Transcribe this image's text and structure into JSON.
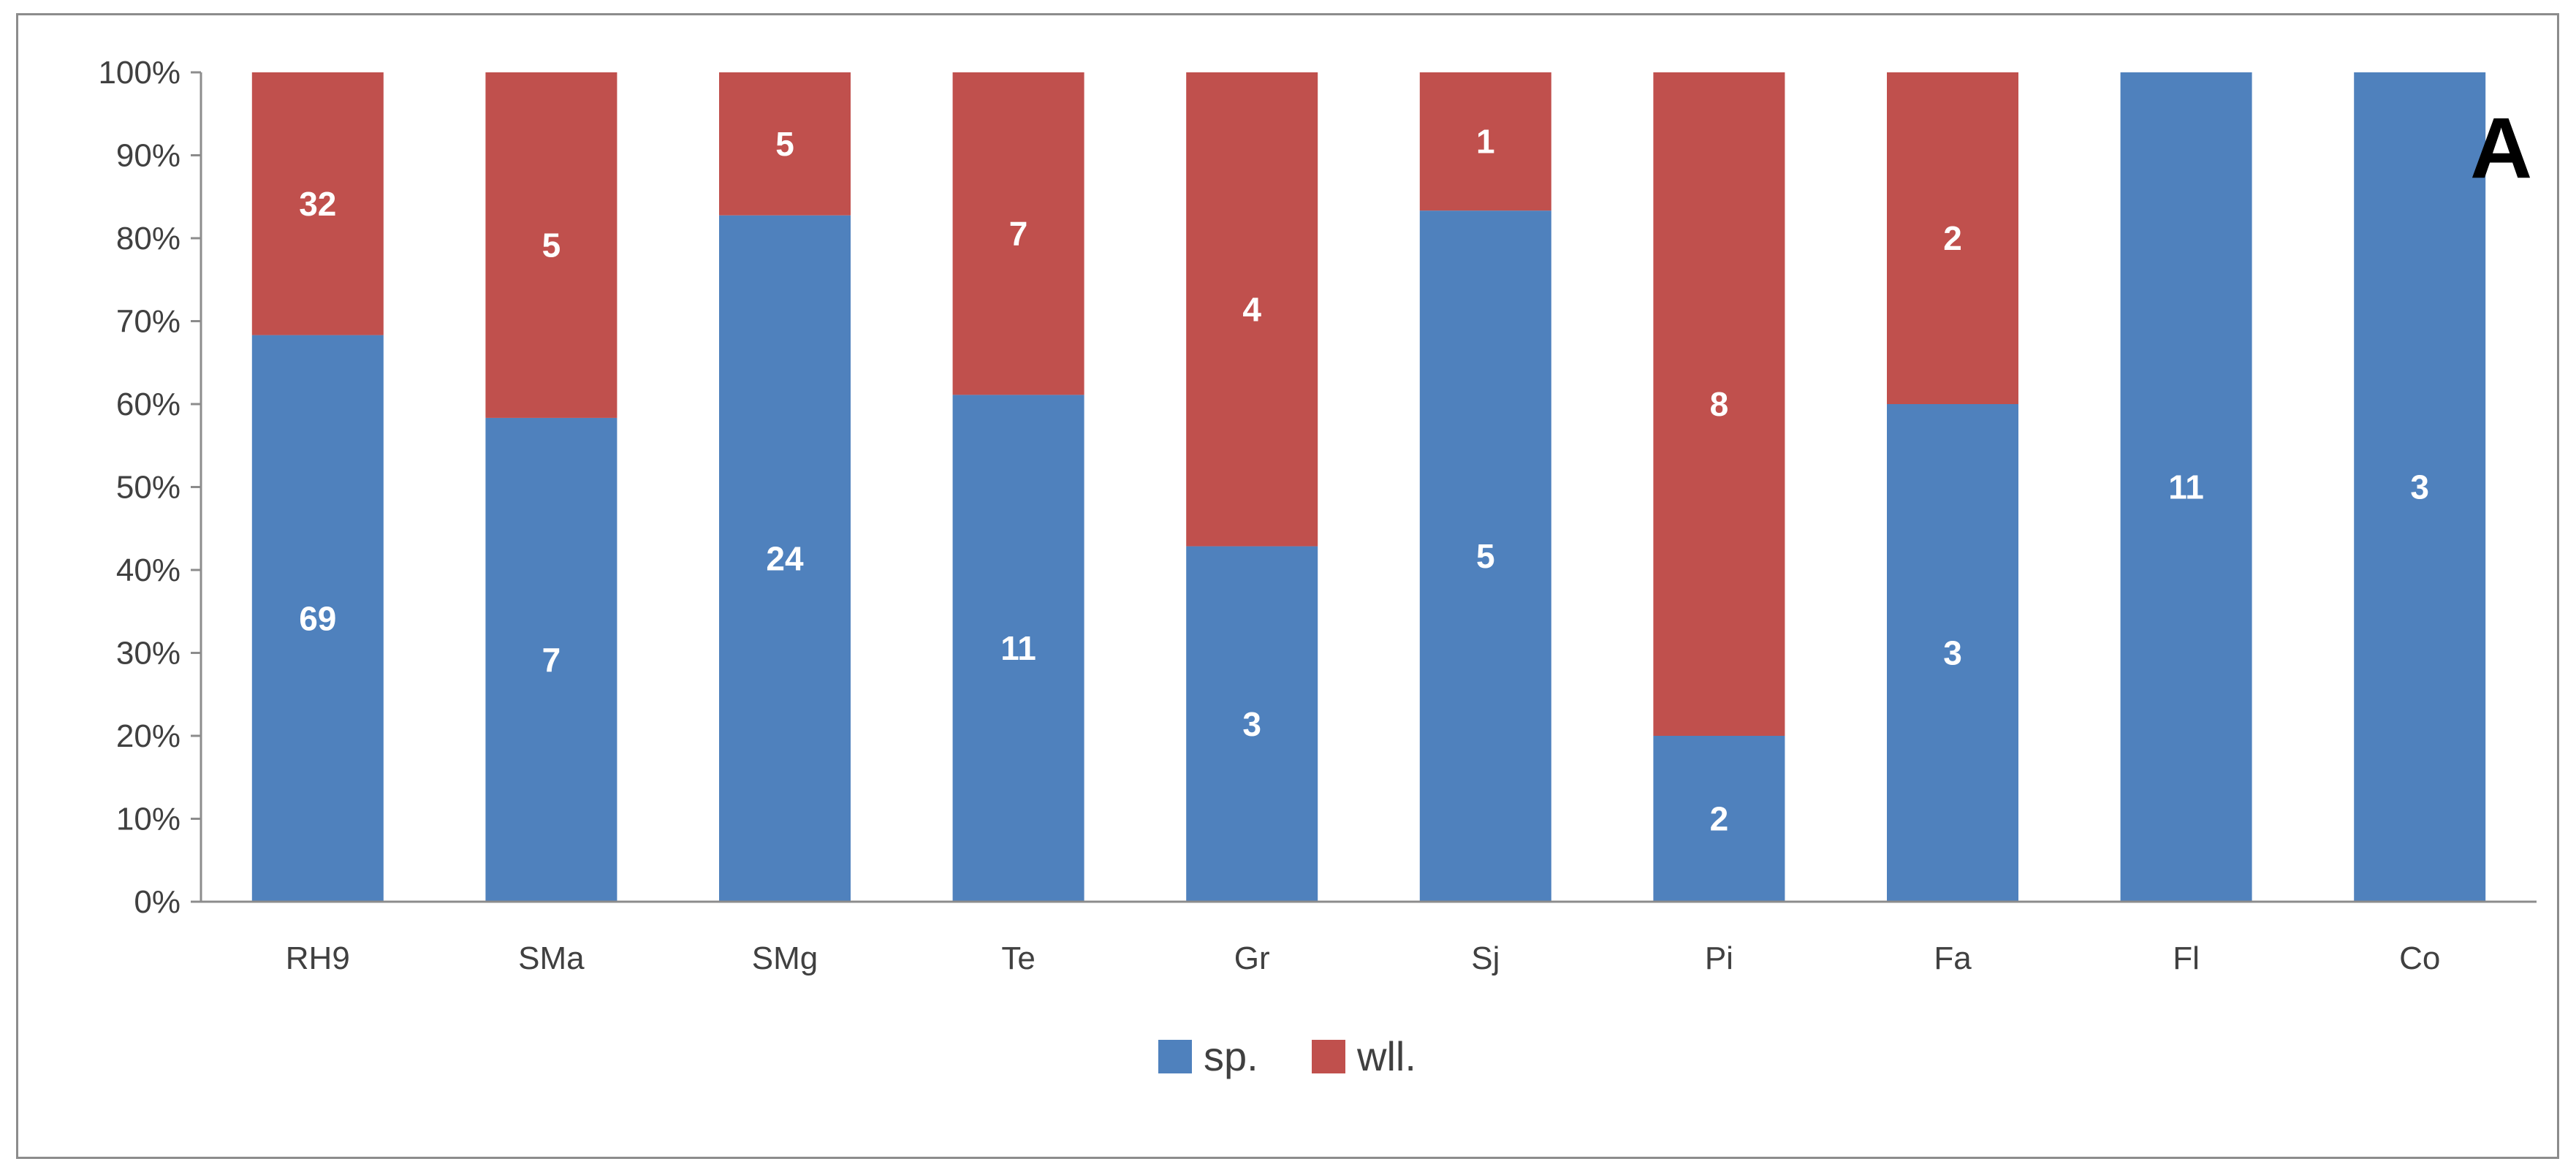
{
  "chart_data": {
    "type": "bar",
    "stacked": true,
    "normalized_percent": true,
    "panel_label": "A",
    "categories": [
      "RH9",
      "SMa",
      "SMg",
      "Te",
      "Gr",
      "Sj",
      "Pi",
      "Fa",
      "Fl",
      "Co"
    ],
    "series": [
      {
        "name": "sp.",
        "color": "#4f81bd",
        "values": [
          69,
          7,
          24,
          11,
          3,
          5,
          2,
          3,
          11,
          3
        ]
      },
      {
        "name": "wll.",
        "color": "#c0504d",
        "values": [
          32,
          5,
          5,
          7,
          4,
          1,
          8,
          2,
          0,
          0
        ]
      }
    ],
    "y_ticks": [
      "0%",
      "10%",
      "20%",
      "30%",
      "40%",
      "50%",
      "60%",
      "70%",
      "80%",
      "90%",
      "100%"
    ],
    "ylim": [
      0,
      100
    ],
    "grid": false,
    "legend_position": "bottom",
    "xlabel": "",
    "ylabel": ""
  }
}
